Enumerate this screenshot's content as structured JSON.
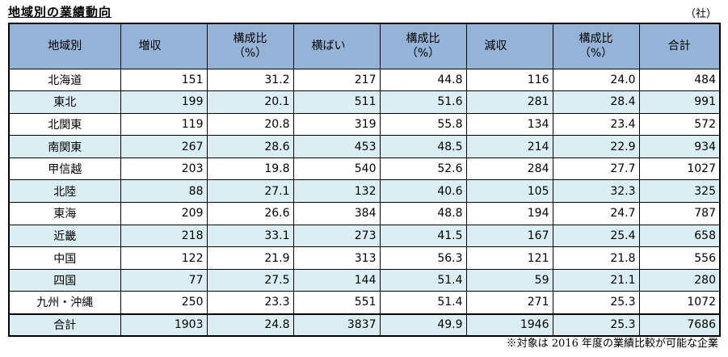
{
  "title": "地域別の業績動向",
  "unit": "（社）",
  "headers": {
    "region": "地域別",
    "increase": "増収",
    "increase_pct_line1": "構成比",
    "increase_pct_line2": "（%）",
    "flat": "横ばい",
    "flat_pct_line1": "構成比",
    "flat_pct_line2": "（%）",
    "decrease": "減収",
    "decrease_pct_line1": "構成比",
    "decrease_pct_line2": "（%）",
    "total": "合計"
  },
  "rows": [
    {
      "region": "北海道",
      "increase": "151",
      "increase_pct": "31.2",
      "flat": "217",
      "flat_pct": "44.8",
      "decrease": "116",
      "decrease_pct": "24.0",
      "total": "484"
    },
    {
      "region": "東北",
      "increase": "199",
      "increase_pct": "20.1",
      "flat": "511",
      "flat_pct": "51.6",
      "decrease": "281",
      "decrease_pct": "28.4",
      "total": "991"
    },
    {
      "region": "北関東",
      "increase": "119",
      "increase_pct": "20.8",
      "flat": "319",
      "flat_pct": "55.8",
      "decrease": "134",
      "decrease_pct": "23.4",
      "total": "572"
    },
    {
      "region": "南関東",
      "increase": "267",
      "increase_pct": "28.6",
      "flat": "453",
      "flat_pct": "48.5",
      "decrease": "214",
      "decrease_pct": "22.9",
      "total": "934"
    },
    {
      "region": "甲信越",
      "increase": "203",
      "increase_pct": "19.8",
      "flat": "540",
      "flat_pct": "52.6",
      "decrease": "284",
      "decrease_pct": "27.7",
      "total": "1027"
    },
    {
      "region": "北陸",
      "increase": "88",
      "increase_pct": "27.1",
      "flat": "132",
      "flat_pct": "40.6",
      "decrease": "105",
      "decrease_pct": "32.3",
      "total": "325"
    },
    {
      "region": "東海",
      "increase": "209",
      "increase_pct": "26.6",
      "flat": "384",
      "flat_pct": "48.8",
      "decrease": "194",
      "decrease_pct": "24.7",
      "total": "787"
    },
    {
      "region": "近畿",
      "increase": "218",
      "increase_pct": "33.1",
      "flat": "273",
      "flat_pct": "41.5",
      "decrease": "167",
      "decrease_pct": "25.4",
      "total": "658"
    },
    {
      "region": "中国",
      "increase": "122",
      "increase_pct": "21.9",
      "flat": "313",
      "flat_pct": "56.3",
      "decrease": "121",
      "decrease_pct": "21.8",
      "total": "556"
    },
    {
      "region": "四国",
      "increase": "77",
      "increase_pct": "27.5",
      "flat": "144",
      "flat_pct": "51.4",
      "decrease": "59",
      "decrease_pct": "21.1",
      "total": "280"
    },
    {
      "region": "九州・沖縄",
      "increase": "250",
      "increase_pct": "23.3",
      "flat": "551",
      "flat_pct": "51.4",
      "decrease": "271",
      "decrease_pct": "25.3",
      "total": "1072"
    }
  ],
  "total_row": {
    "region": "合計",
    "increase": "1903",
    "increase_pct": "24.8",
    "flat": "3837",
    "flat_pct": "49.9",
    "decrease": "1946",
    "decrease_pct": "25.3",
    "total": "7686"
  },
  "note": "※対象は 2016 年度の業績比較が可能な企業"
}
